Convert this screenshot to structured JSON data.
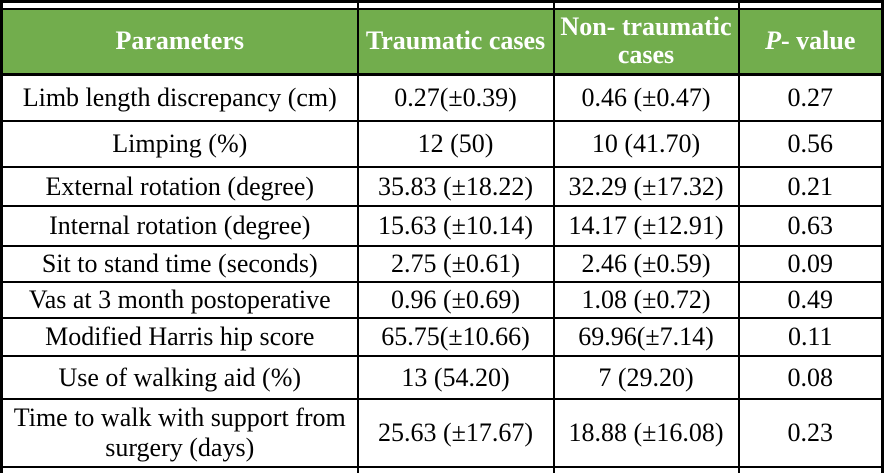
{
  "table": {
    "header": {
      "columns": [
        "Parameters",
        "Traumatic cases",
        "Non- traumatic cases"
      ],
      "p_value_italic": "P",
      "p_value_rest": "- value"
    },
    "rows": [
      [
        "Limb length discrepancy (cm)",
        "0.27(±0.39)",
        "0.46 (±0.47)",
        "0.27"
      ],
      [
        "Limping (%)",
        "12 (50)",
        "10 (41.70)",
        "0.56"
      ],
      [
        "External rotation (degree)",
        "35.83 (±18.22)",
        "32.29 (±17.32)",
        "0.21"
      ],
      [
        "Internal rotation (degree)",
        "15.63 (±10.14)",
        "14.17 (±12.91)",
        "0.63"
      ],
      [
        "Sit to stand time (seconds)",
        "2.75 (±0.61)",
        "2.46 (±0.59)",
        "0.09"
      ],
      [
        "Vas at 3 month postoperative",
        "0.96 (±0.69)",
        "1.08 (±0.72)",
        "0.49"
      ],
      [
        "Modified Harris hip score",
        "65.75(±10.66)",
        "69.96(±7.14)",
        "0.11"
      ],
      [
        "Use of walking aid (%)",
        "13 (54.20)",
        "7 (29.20)",
        "0.08"
      ],
      [
        "Time to walk with support from surgery (days)",
        "25.63 (±17.67)",
        "18.88 (±16.08)",
        "0.23"
      ]
    ],
    "colors": {
      "header_bg": "#72ad4d",
      "header_text": "#ffffff",
      "body_text": "#000000",
      "border": "#000000"
    }
  }
}
